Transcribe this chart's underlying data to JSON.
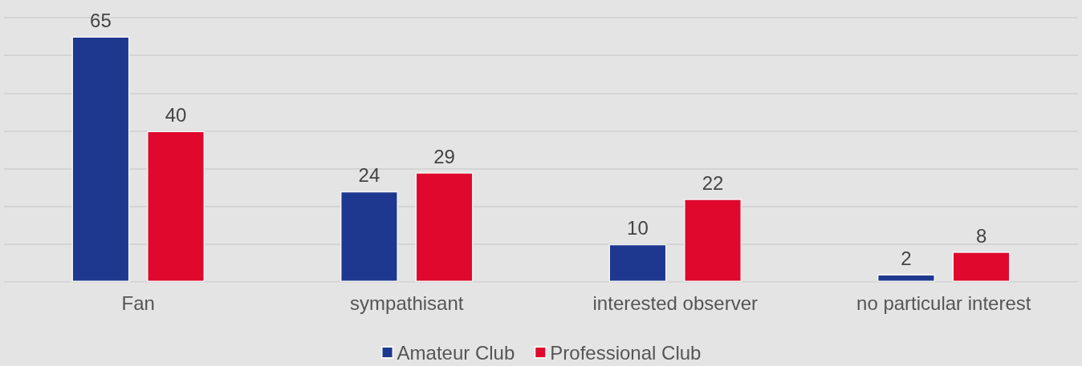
{
  "chart_data": {
    "type": "bar",
    "categories": [
      "Fan",
      "sympathisant",
      "interested observer",
      "no particular interest"
    ],
    "series": [
      {
        "name": "Amateur Club",
        "color": "#1f388f",
        "values": [
          65,
          24,
          10,
          2
        ]
      },
      {
        "name": "Professional Club",
        "color": "#e0082d",
        "values": [
          40,
          29,
          22,
          8
        ]
      }
    ],
    "ylim": [
      0,
      70
    ],
    "yticks": [
      {
        "value": 0,
        "label": null
      },
      {
        "value": 10,
        "label": null
      },
      {
        "value": 20,
        "label": null
      },
      {
        "value": 30,
        "label": null
      },
      {
        "value": 40,
        "label": null
      },
      {
        "value": 50,
        "label": null
      },
      {
        "value": 60,
        "label": null
      },
      {
        "value": 70,
        "label": null
      }
    ],
    "grid": "y",
    "tick_labels": "x",
    "data_labels": true,
    "legend": "bottom"
  }
}
